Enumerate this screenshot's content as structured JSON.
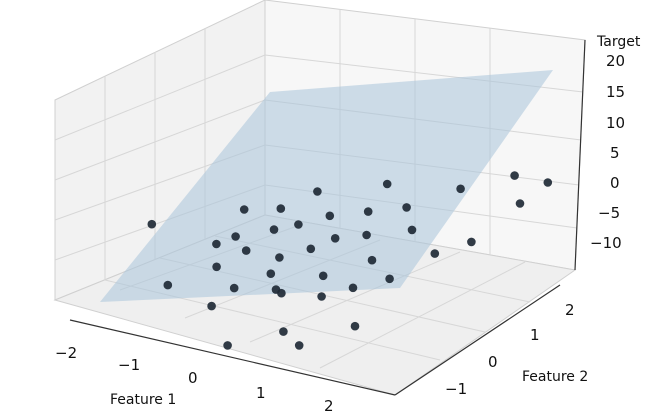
{
  "chart_data": {
    "type": "scatter",
    "projection": "3d",
    "title": "",
    "xlabel": "Feature 1",
    "ylabel": "Feature 2",
    "zlabel": "Target",
    "xlim": [
      -2,
      2
    ],
    "ylim": [
      -1.5,
      2.5
    ],
    "zlim": [
      -15,
      20
    ],
    "xticks": [
      "−2",
      "−1",
      "0",
      "1",
      "2"
    ],
    "yticks": [
      "−1",
      "0",
      "1",
      "2"
    ],
    "zticks": [
      "20",
      "15",
      "10",
      "5",
      "0",
      "−5",
      "−10"
    ],
    "grid": true,
    "point_color": "#1f2a36",
    "plane_color": "#a9c4da",
    "plane_corners_z": [
      -15,
      20
    ],
    "points": [
      {
        "x": -1.9,
        "y": -0.1,
        "z": -1.0
      },
      {
        "x": -1.2,
        "y": 0.2,
        "z": -4.0
      },
      {
        "x": -1.1,
        "y": 0.6,
        "z": 0.5
      },
      {
        "x": -1.0,
        "y": 0.3,
        "z": -2.5
      },
      {
        "x": -0.9,
        "y": -0.2,
        "z": -5.0
      },
      {
        "x": -0.8,
        "y": 0.9,
        "z": 0.0
      },
      {
        "x": -0.7,
        "y": 0.1,
        "z": -3.0
      },
      {
        "x": -0.6,
        "y": 0.5,
        "z": -1.0
      },
      {
        "x": -0.5,
        "y": -0.4,
        "z": -6.5
      },
      {
        "x": -0.4,
        "y": 0.7,
        "z": -0.5
      },
      {
        "x": -0.3,
        "y": 0.2,
        "z": -3.5
      },
      {
        "x": -0.2,
        "y": -0.1,
        "z": -4.5
      },
      {
        "x": -0.1,
        "y": 0.9,
        "z": 1.0
      },
      {
        "x": 0.0,
        "y": 0.4,
        "z": -2.0
      },
      {
        "x": 0.1,
        "y": -0.3,
        "z": -6.0
      },
      {
        "x": 0.2,
        "y": 0.6,
        "z": -0.5
      },
      {
        "x": 0.3,
        "y": 1.1,
        "z": 2.0
      },
      {
        "x": 0.4,
        "y": 0.1,
        "z": -4.0
      },
      {
        "x": 0.5,
        "y": 0.8,
        "z": 0.0
      },
      {
        "x": 0.6,
        "y": -0.2,
        "z": -5.5
      },
      {
        "x": 0.7,
        "y": 1.3,
        "z": 3.0
      },
      {
        "x": 0.8,
        "y": 0.5,
        "z": -2.0
      },
      {
        "x": 0.9,
        "y": 0.0,
        "z": -4.0
      },
      {
        "x": 1.0,
        "y": 1.0,
        "z": 1.5
      },
      {
        "x": 1.1,
        "y": 1.8,
        "z": 5.0
      },
      {
        "x": 1.2,
        "y": 0.3,
        "z": -3.0
      },
      {
        "x": 1.4,
        "y": 0.9,
        "z": -1.0
      },
      {
        "x": 1.5,
        "y": 2.3,
        "z": 6.0
      },
      {
        "x": 1.7,
        "y": 1.2,
        "z": 0.5
      },
      {
        "x": 1.8,
        "y": 2.0,
        "z": 3.5
      },
      {
        "x": 1.9,
        "y": 2.4,
        "z": 5.5
      },
      {
        "x": -0.5,
        "y": 1.2,
        "z": 2.5
      },
      {
        "x": 0.2,
        "y": 1.6,
        "z": 4.0
      },
      {
        "x": -0.2,
        "y": 0.0,
        "z": -8.0
      },
      {
        "x": 0.5,
        "y": -0.8,
        "z": -9.0
      },
      {
        "x": 1.3,
        "y": -0.5,
        "z": -7.0
      },
      {
        "x": -1.3,
        "y": -0.6,
        "z": -7.5
      },
      {
        "x": -0.6,
        "y": -0.7,
        "z": -8.5
      },
      {
        "x": 0.8,
        "y": -0.9,
        "z": -10.0
      },
      {
        "x": 0.0,
        "y": -1.2,
        "z": -11.0
      }
    ]
  }
}
